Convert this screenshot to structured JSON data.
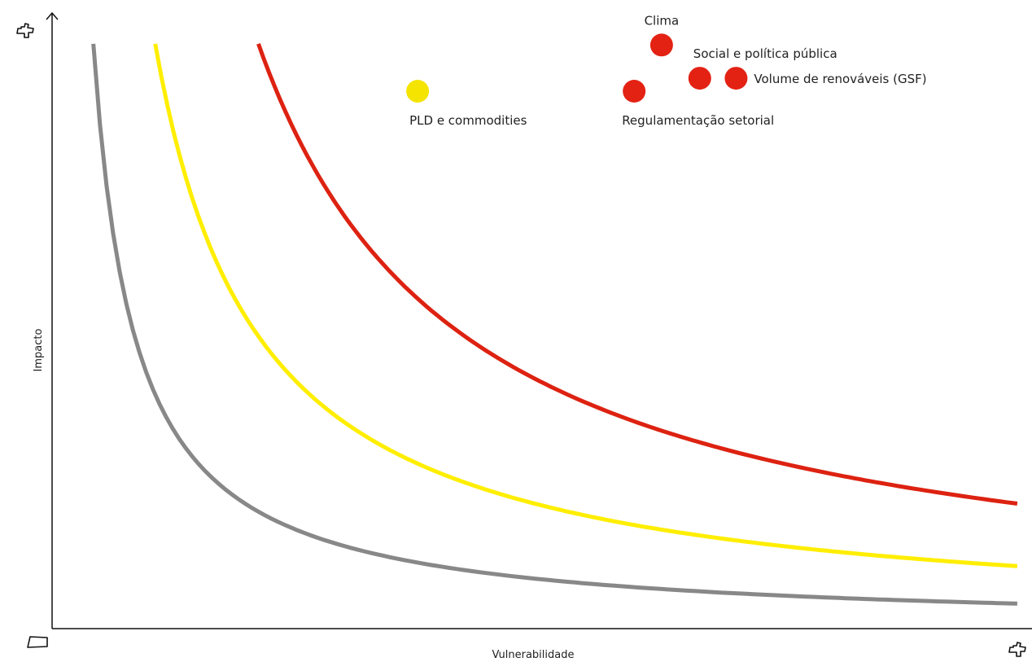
{
  "chart_data": {
    "type": "scatter",
    "title": "",
    "xlabel": "Vulnerabilidade",
    "ylabel": "Impacto",
    "xlim": [
      0,
      100
    ],
    "ylim": [
      0,
      100
    ],
    "grid": false,
    "axis_markers": {
      "y_max_icon": "plus-icon",
      "x_max_icon": "plus-icon",
      "origin_icon": "minus-icon"
    },
    "curves": [
      {
        "level": "low",
        "color": "#888888",
        "k": 400
      },
      {
        "level": "medium",
        "color": "#ffee00",
        "k": 1000
      },
      {
        "level": "high",
        "color": "#dd2211",
        "k": 2000
      }
    ],
    "points": [
      {
        "label": "Clima",
        "x": 62.2,
        "y": 94.8,
        "color": "#e32214"
      },
      {
        "label": "Social e política pública",
        "x": 66.1,
        "y": 89.4,
        "color": "#e32214"
      },
      {
        "label": "Volume de renováveis (GSF)",
        "x": 69.8,
        "y": 89.4,
        "color": "#e32214"
      },
      {
        "label": "Regulamentação setorial",
        "x": 59.4,
        "y": 87.3,
        "color": "#e32214"
      },
      {
        "label": "PLD e commodities",
        "x": 37.3,
        "y": 87.3,
        "color": "#f5e400"
      }
    ]
  }
}
